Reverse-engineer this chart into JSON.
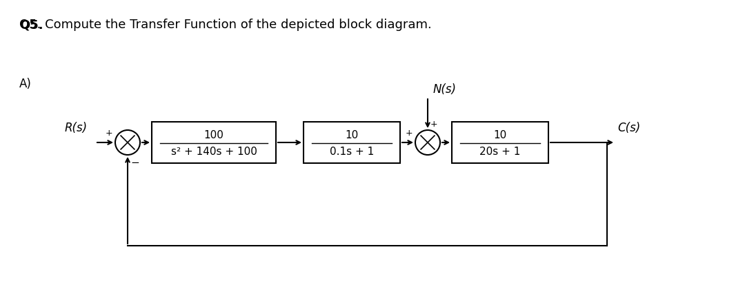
{
  "title": "Q5. Compute the Transfer Function of the depicted block diagram.",
  "label_A": "A)",
  "R_label": "R(s)",
  "C_label": "C(s)",
  "N_label": "N(s)",
  "block1_num": "100",
  "block1_den": "s² + 140s + 100",
  "block2_num": "10",
  "block2_den": "0.1s + 1",
  "block3_num": "10",
  "block3_den": "20s + 1",
  "bg_color": "#ffffff",
  "text_color": "#000000",
  "line_color": "#000000",
  "box_color": "#ffffff",
  "box_edge_color": "#000000",
  "title_fontsize": 13,
  "label_fontsize": 12,
  "block_fontsize": 11
}
